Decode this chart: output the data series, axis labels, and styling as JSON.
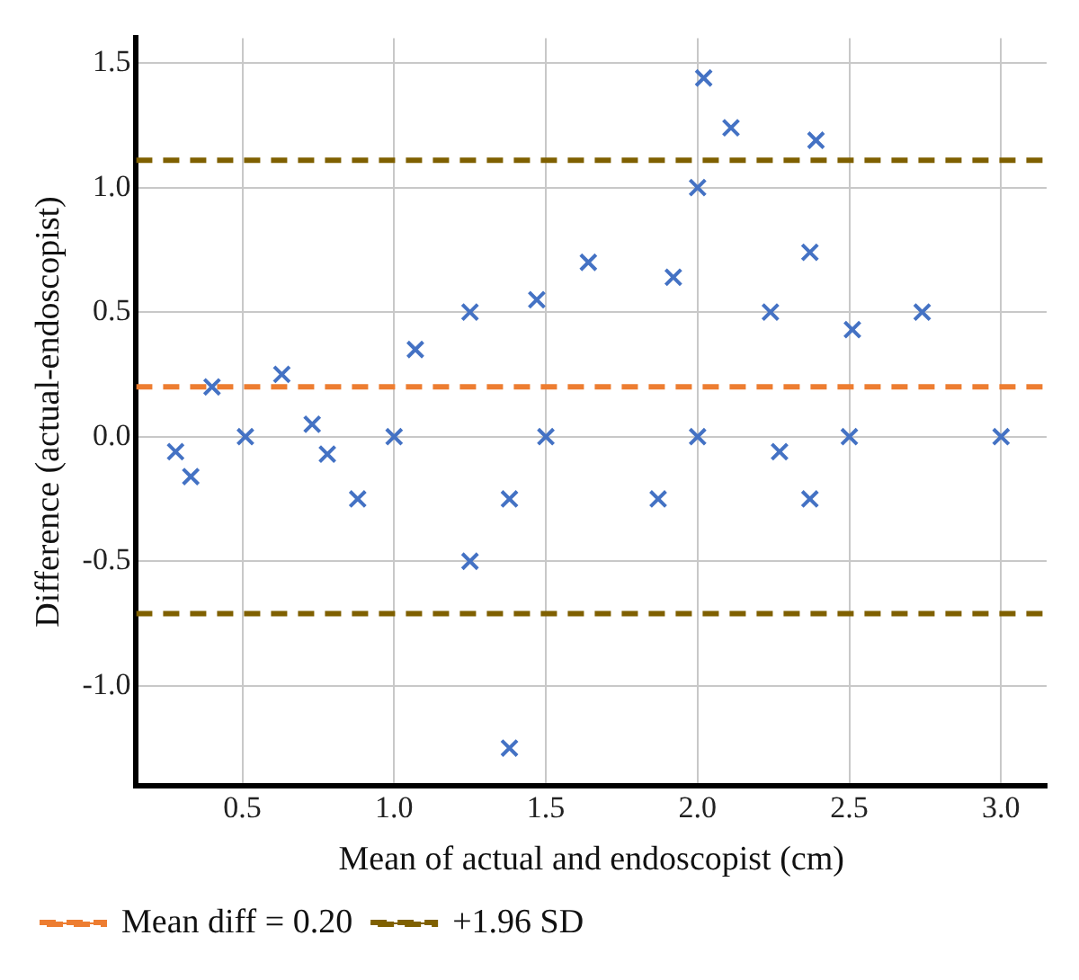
{
  "chart_data": {
    "type": "scatter",
    "xlabel": "Mean of actual and endoscopist (cm)",
    "ylabel": "Difference (actual-endoscopist)",
    "x": [
      0.28,
      0.33,
      0.4,
      0.51,
      0.63,
      0.73,
      0.78,
      0.88,
      1.0,
      1.07,
      1.25,
      1.25,
      1.38,
      1.38,
      1.47,
      1.5,
      1.64,
      1.87,
      1.92,
      2.0,
      2.0,
      2.02,
      2.11,
      2.24,
      2.27,
      2.37,
      2.37,
      2.39,
      2.5,
      2.51,
      2.74,
      3.0
    ],
    "series": [
      {
        "color": "#4472c4",
        "values": [
          -0.06,
          -0.16,
          0.2,
          0.0,
          0.25,
          0.05,
          -0.07,
          -0.25,
          0.0,
          0.35,
          0.5,
          -0.5,
          -0.25,
          -1.25,
          0.55,
          0.0,
          0.7,
          -0.25,
          0.64,
          1.0,
          0.0,
          1.44,
          1.24,
          0.5,
          -0.06,
          0.74,
          -0.25,
          1.19,
          0.0,
          0.43,
          0.5,
          0.0
        ]
      }
    ],
    "marker": "cross",
    "xlim": [
      0.15,
      3.15
    ],
    "ylim": [
      -1.4,
      1.6
    ],
    "xticks": [
      0.5,
      {
        "value": 1,
        "label": "1.0"
      },
      1.5,
      {
        "value": 2,
        "label": "2.0"
      },
      2.5,
      {
        "value": 3,
        "label": "3.0"
      }
    ],
    "yticks": [
      {
        "value": -1,
        "label": "-1.0"
      },
      -0.5,
      {
        "value": 0,
        "label": "0.0"
      },
      0.5,
      {
        "value": 1,
        "label": "1.0"
      },
      1.5
    ],
    "ref_lines": [
      {
        "axis": "y",
        "value": 0.2,
        "label": "Mean diff = 0.20",
        "color": "#ed7d31",
        "line_style": "dashed"
      },
      {
        "axis": "y",
        "value": 1.11,
        "label": "+1.96 SD",
        "color": "#7f6000",
        "line_style": "dashed"
      },
      {
        "axis": "y",
        "value": -0.71,
        "color": "#7f6000",
        "line_style": "dashed"
      }
    ],
    "grid": true,
    "legend": "bottom"
  }
}
